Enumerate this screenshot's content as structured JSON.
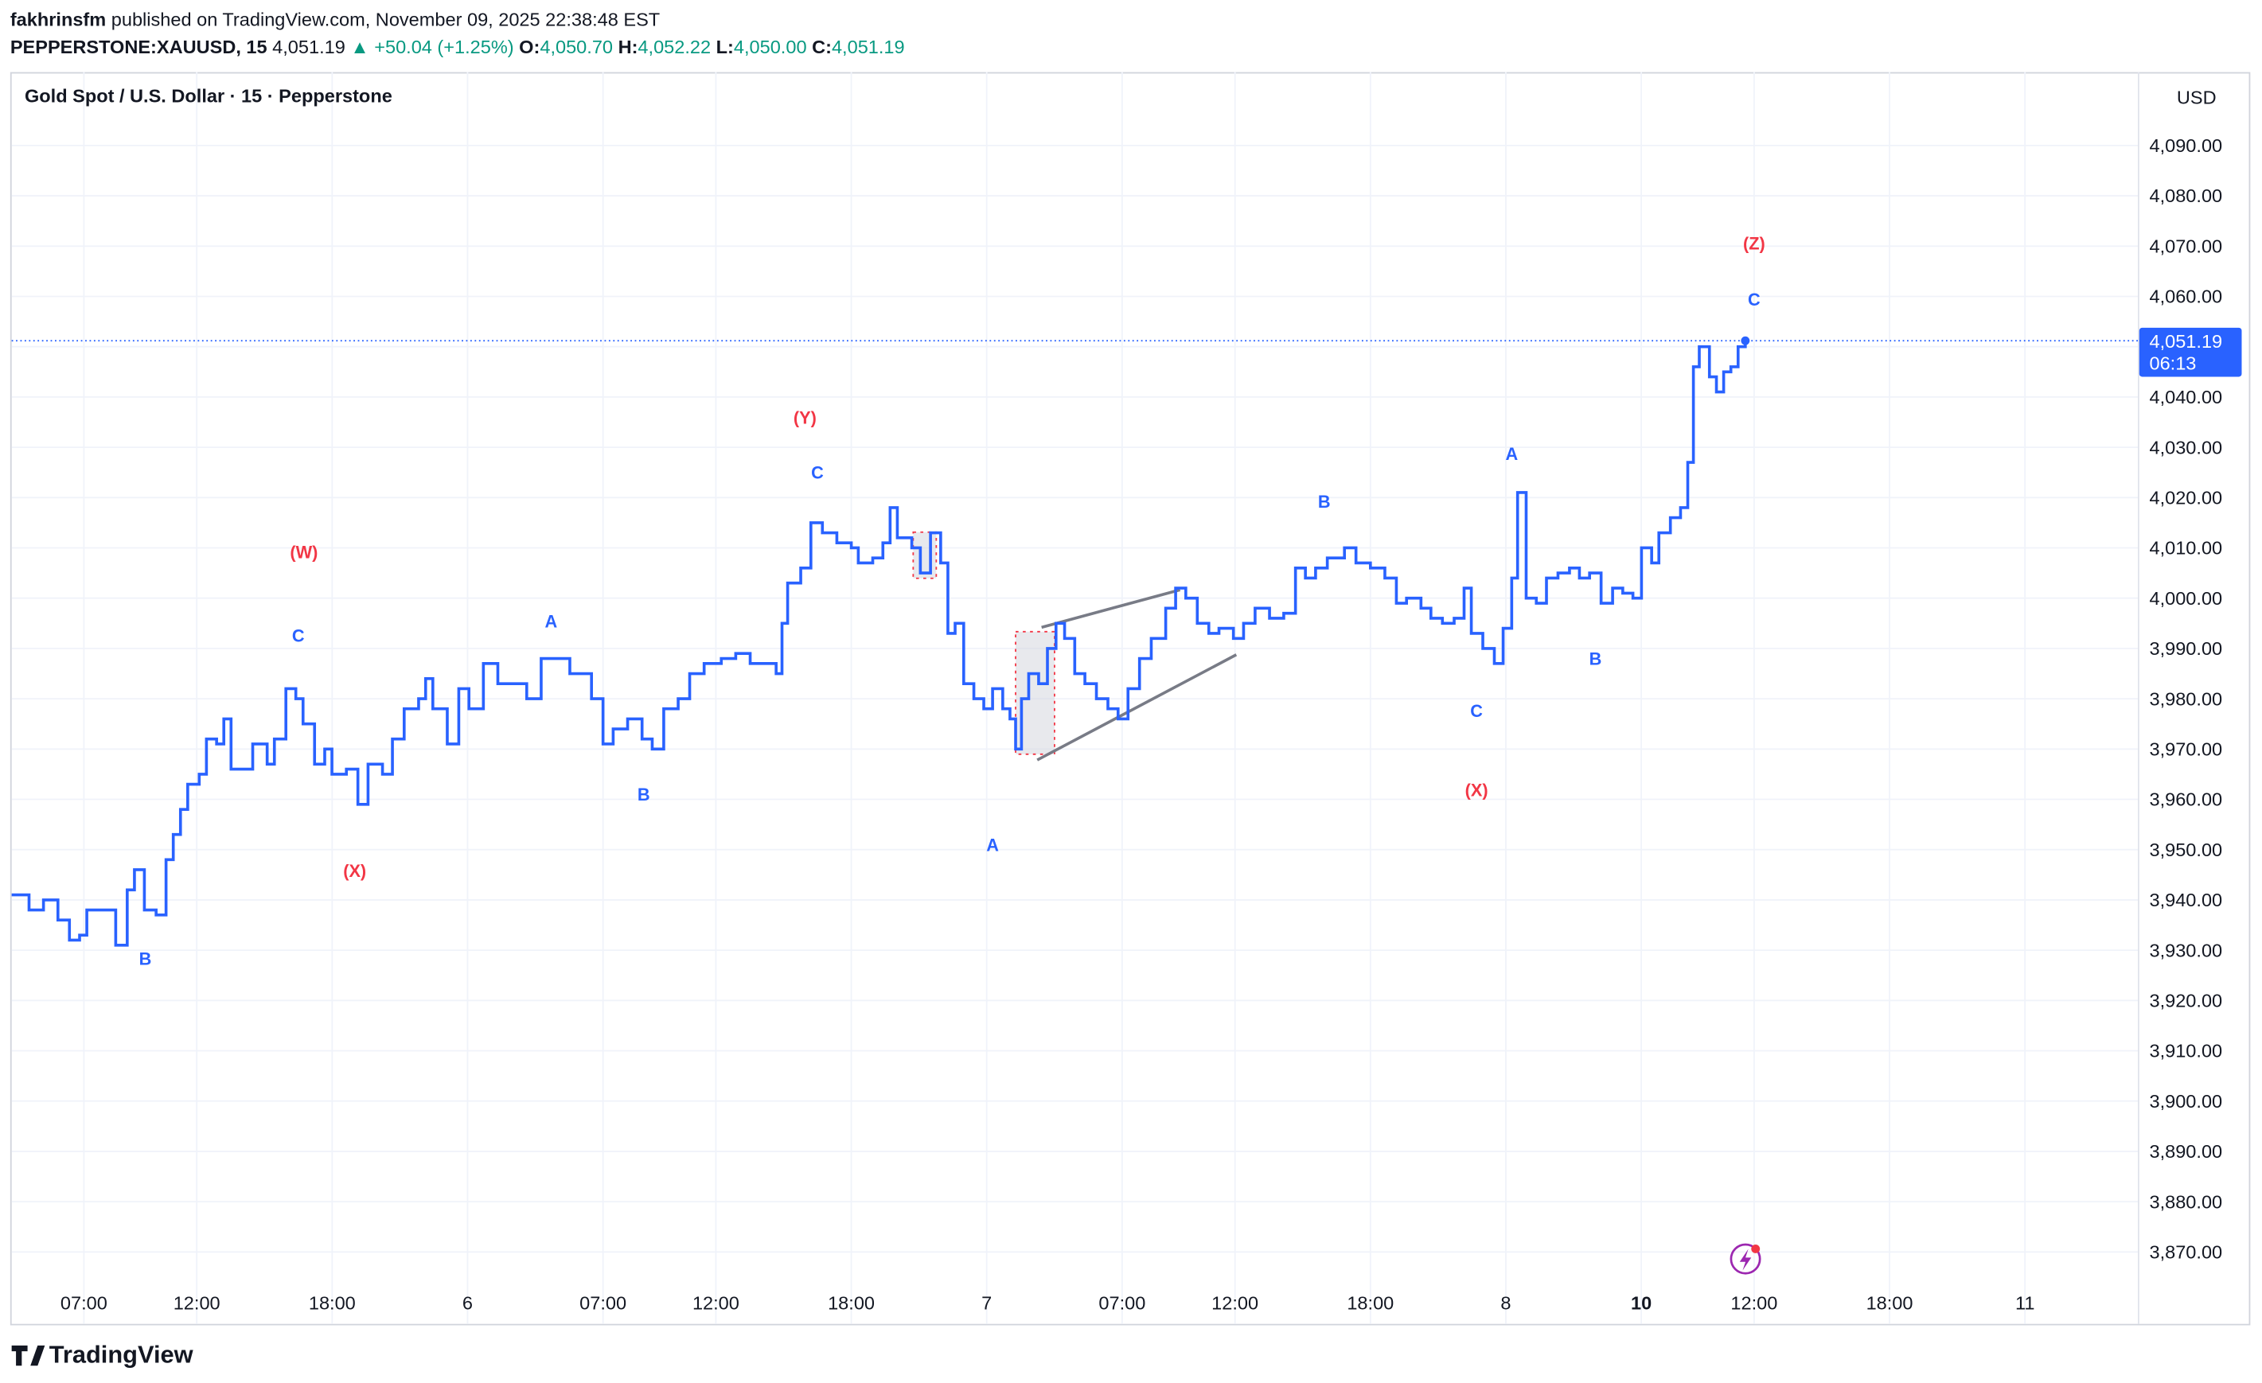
{
  "header": {
    "author": "fakhrinsfm",
    "published": "published on TradingView.com, November 09, 2025 22:38:48 EST",
    "symbol": "PEPPERSTONE:XAUUSD, 15",
    "price": "4,051.19",
    "change": "▲ +50.04 (+1.25%)",
    "open_label": "O:",
    "open": "4,050.70",
    "high_label": "H:",
    "high": "4,052.22",
    "low_label": "L:",
    "low": "4,050.00",
    "close_label": "C:",
    "close": "4,051.19"
  },
  "chart_data": {
    "type": "line",
    "title": "Gold Spot / U.S. Dollar · 15 · Pepperstone",
    "currency": "USD",
    "last_label": "4,051.19",
    "countdown": "06:13",
    "series": [
      {
        "name": "XAUUSD",
        "color": "#2962ff",
        "x": [
          3.8,
          4.57,
          5.21,
          5.85,
          6.36,
          6.81,
          7.13,
          7.77,
          8.41,
          8.92,
          9.24,
          9.68,
          10.2,
          10.64,
          10.96,
          11.28,
          11.6,
          12.11,
          12.43,
          12.88,
          13.2,
          13.52,
          14.16,
          14.48,
          15.12,
          15.44,
          15.95,
          16.39,
          16.71,
          17.22,
          17.67,
          17.99,
          18.63,
          19.14,
          19.59,
          20.23,
          20.67,
          21.19,
          21.83,
          22.14,
          22.46,
          23.1,
          23.61,
          24.06,
          24.7,
          25.34,
          25.98,
          26.62,
          27.26,
          27.9,
          28.53,
          29.49,
          30.0,
          30.45,
          31.09,
          31.73,
          32.18,
          32.69,
          33.33,
          33.84,
          34.48,
          35.24,
          35.88,
          36.52,
          37.16,
          37.67,
          37.93,
          38.18,
          38.76,
          39.21,
          39.72,
          40.36,
          41.0,
          41.31,
          41.95,
          42.4,
          42.72,
          43.04,
          43.68,
          44.06,
          44.51,
          44.96,
          45.28,
          45.6,
          45.98,
          46.43,
          46.87,
          47.26,
          47.71,
          48.03,
          48.28,
          48.54,
          48.86,
          49.3,
          49.69,
          50.07,
          50.45,
          50.9,
          51.35,
          51.86,
          52.37,
          52.82,
          53.26,
          53.77,
          54.29,
          54.93,
          55.37,
          55.82,
          56.33,
          56.84,
          57.29,
          57.93,
          58.38,
          58.89,
          59.53,
          60.16,
          60.68,
          61.12,
          61.57,
          62.09,
          62.85,
          63.36,
          64.0,
          64.64,
          65.15,
          65.6,
          66.24,
          66.68,
          67.19,
          67.71,
          68.15,
          68.47,
          68.98,
          69.49,
          69.88,
          70.26,
          70.52,
          70.9,
          71.35,
          71.8,
          72.31,
          72.82,
          73.26,
          73.71,
          74.22,
          74.73,
          75.18,
          75.63,
          76.01,
          76.46,
          76.78,
          77.29,
          77.74,
          78.06,
          78.31,
          78.57,
          79.02,
          79.33,
          79.65,
          79.97,
          80.29,
          80.61
        ],
        "values": [
          3941,
          3938,
          3940,
          3936,
          3932,
          3933,
          3938,
          3938,
          3931,
          3942,
          3946,
          3938,
          3937,
          3948,
          3953,
          3958,
          3963,
          3965,
          3972,
          3971,
          3976,
          3966,
          3966,
          3971,
          3967,
          3972,
          3982,
          3980,
          3975,
          3967,
          3970,
          3965,
          3966,
          3959,
          3967,
          3965,
          3972,
          3978,
          3980,
          3984,
          3978,
          3971,
          3982,
          3978,
          3987,
          3983,
          3983,
          3980,
          3988,
          3988,
          3985,
          3980,
          3971,
          3974,
          3976,
          3972,
          3970,
          3978,
          3980,
          3985,
          3987,
          3988,
          3989,
          3987,
          3987,
          3985,
          3995,
          4003,
          4006,
          4015,
          4013,
          4011,
          4010,
          4007,
          4008,
          4011,
          4018,
          4012,
          4010,
          4005,
          4013,
          4007,
          3993,
          3995,
          3983,
          3980,
          3978,
          3982,
          3978,
          3976,
          3970,
          3980,
          3985,
          3983,
          3990,
          3995,
          3992,
          3985,
          3983,
          3980,
          3978,
          3976,
          3982,
          3988,
          3992,
          3998,
          4002,
          4000,
          3995,
          3993,
          3994,
          3992,
          3995,
          3998,
          3996,
          3997,
          4006,
          4004,
          4006,
          4008,
          4010,
          4007,
          4006,
          4004,
          3999,
          4000,
          3998,
          3996,
          3995,
          3996,
          4002,
          3993,
          3990,
          3987,
          3994,
          4004,
          4021,
          4000,
          3999,
          4004,
          4005,
          4006,
          4004,
          4005,
          3999,
          4002,
          4001,
          4000,
          4010,
          4007,
          4013,
          4016,
          4018,
          4027,
          4046,
          4050,
          4044,
          4041,
          4045,
          4046,
          4050,
          4051.19
        ]
      }
    ],
    "xlim": [
      3.8,
      98.0
    ],
    "xticks": [
      {
        "value": 7,
        "label": "07:00"
      },
      {
        "value": 12,
        "label": "12:00"
      },
      {
        "value": 18,
        "label": "18:00"
      },
      {
        "value": 24,
        "label": "6"
      },
      {
        "value": 30,
        "label": "07:00"
      },
      {
        "value": 35,
        "label": "12:00"
      },
      {
        "value": 41,
        "label": "18:00"
      },
      {
        "value": 47,
        "label": "7"
      },
      {
        "value": 53,
        "label": "07:00"
      },
      {
        "value": 58,
        "label": "12:00"
      },
      {
        "value": 64,
        "label": "18:00"
      },
      {
        "value": 70,
        "label": "8"
      },
      {
        "value": 76,
        "label": "10"
      },
      {
        "value": 81,
        "label": "12:00"
      },
      {
        "value": 87,
        "label": "18:00"
      },
      {
        "value": 93,
        "label": "11"
      }
    ],
    "ylim": [
      3855.7,
      4104.6
    ],
    "yticks": [
      {
        "value": 3870,
        "label": "3,870.00"
      },
      {
        "value": 3880,
        "label": "3,880.00"
      },
      {
        "value": 3890,
        "label": "3,890.00"
      },
      {
        "value": 3900,
        "label": "3,900.00"
      },
      {
        "value": 3910,
        "label": "3,910.00"
      },
      {
        "value": 3920,
        "label": "3,920.00"
      },
      {
        "value": 3930,
        "label": "3,930.00"
      },
      {
        "value": 3940,
        "label": "3,940.00"
      },
      {
        "value": 3950,
        "label": "3,950.00"
      },
      {
        "value": 3960,
        "label": "3,960.00"
      },
      {
        "value": 3970,
        "label": "3,970.00"
      },
      {
        "value": 3980,
        "label": "3,980.00"
      },
      {
        "value": 3990,
        "label": "3,990.00"
      },
      {
        "value": 4000,
        "label": "4,000.00"
      },
      {
        "value": 4010,
        "label": "4,010.00"
      },
      {
        "value": 4020,
        "label": "4,020.00"
      },
      {
        "value": 4030,
        "label": "4,030.00"
      },
      {
        "value": 4040,
        "label": "4,040.00"
      },
      {
        "value": 4050,
        "label": "4,050.00"
      },
      {
        "value": 4060,
        "label": "4,060.00"
      },
      {
        "value": 4070,
        "label": "4,070.00"
      },
      {
        "value": 4080,
        "label": "4,080.00"
      },
      {
        "value": 4090,
        "label": "4,090.00"
      }
    ],
    "grid": true,
    "annotations": [
      {
        "text": "B",
        "x": 9.72,
        "y": 3928.2,
        "color": "#2962ff"
      },
      {
        "text": "(W)",
        "x": 16.75,
        "y": 4009.1,
        "color": "#f23645"
      },
      {
        "text": "C",
        "x": 16.5,
        "y": 3992.5,
        "color": "#2962ff"
      },
      {
        "text": "(X)",
        "x": 19.0,
        "y": 3945.7,
        "color": "#f23645"
      },
      {
        "text": "A",
        "x": 27.7,
        "y": 3995.3,
        "color": "#2962ff"
      },
      {
        "text": "B",
        "x": 31.8,
        "y": 3960.9,
        "color": "#2962ff"
      },
      {
        "text": "(Y)",
        "x": 38.95,
        "y": 4035.8,
        "color": "#f23645"
      },
      {
        "text": "C",
        "x": 39.5,
        "y": 4024.9,
        "color": "#2962ff"
      },
      {
        "text": "A",
        "x": 47.26,
        "y": 3950.9,
        "color": "#2962ff"
      },
      {
        "text": "B",
        "x": 61.95,
        "y": 4019.1,
        "color": "#2962ff"
      },
      {
        "text": "C",
        "x": 68.7,
        "y": 3977.5,
        "color": "#2962ff"
      },
      {
        "text": "(X)",
        "x": 68.7,
        "y": 3961.8,
        "color": "#f23645"
      },
      {
        "text": "A",
        "x": 70.26,
        "y": 4028.6,
        "color": "#2962ff"
      },
      {
        "text": "B",
        "x": 73.97,
        "y": 3987.9,
        "color": "#2962ff"
      },
      {
        "text": "(Z)",
        "x": 81.0,
        "y": 4070.5,
        "color": "#f23645"
      },
      {
        "text": "C",
        "x": 81.0,
        "y": 4059.3,
        "color": "#2962ff"
      }
    ]
  },
  "footer": {
    "brand": "TradingView"
  }
}
